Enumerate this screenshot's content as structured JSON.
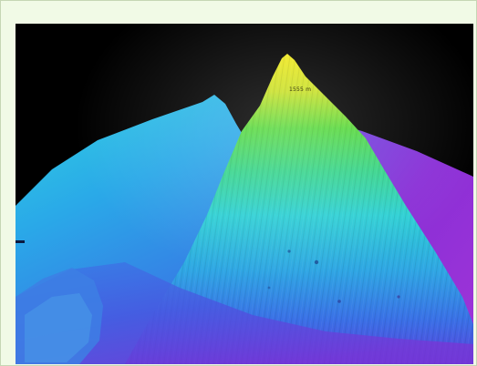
{
  "figure": {
    "peak_label": "1555 m"
  },
  "colors": {
    "frame_background": "#f1fae6",
    "frame_border": "#c6d6b4",
    "sky": "#000000",
    "peak": "#f0e020",
    "upper_slope": "#4ed83a",
    "mid_slope": "#2fd4d6",
    "lower_slope": "#2d8be0",
    "deep_floor": "#8a2fd6"
  }
}
